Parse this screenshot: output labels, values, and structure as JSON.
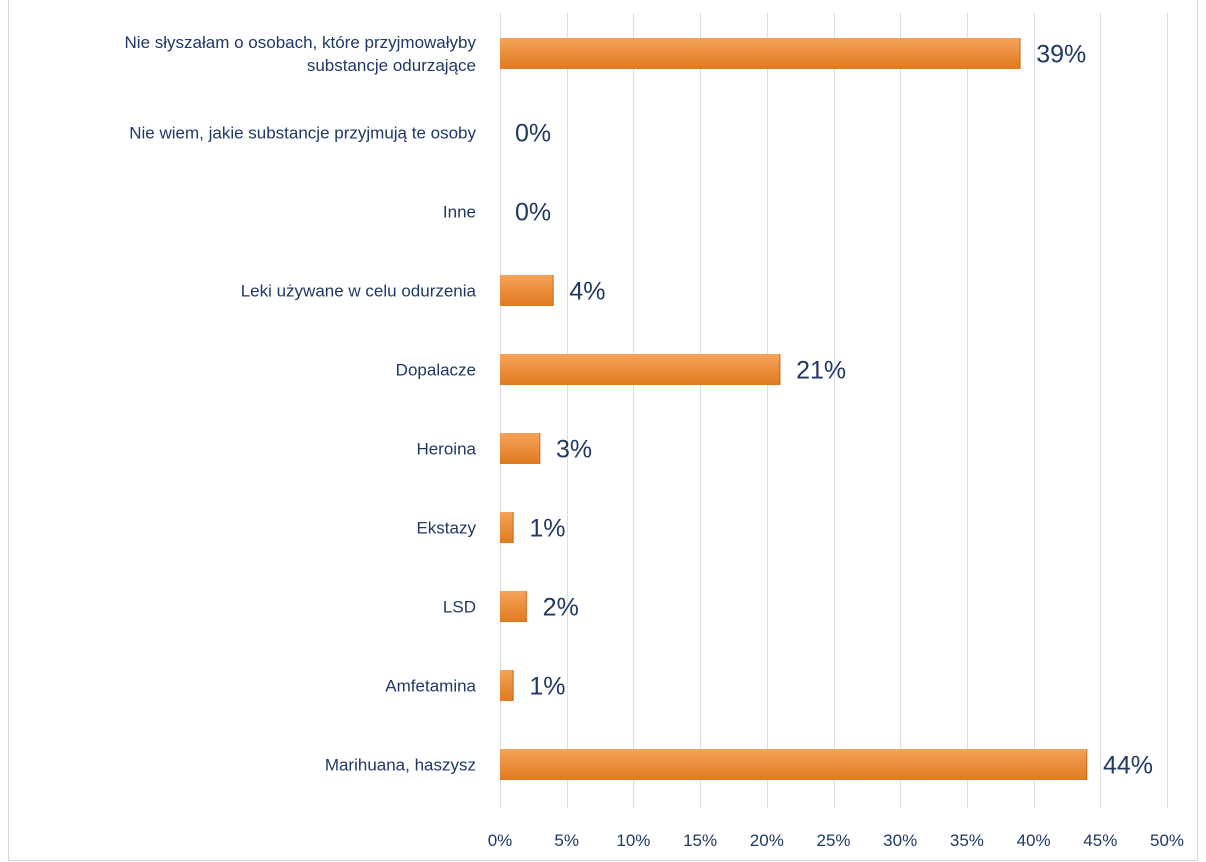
{
  "chart_data": {
    "type": "bar",
    "orientation": "horizontal",
    "title": "",
    "xlabel": "",
    "ylabel": "",
    "categories": [
      [
        "Nie słyszałam o osobach, które przyjmowałyby",
        "substancje odurzające"
      ],
      [
        "Nie wiem, jakie substancje przyjmują te osoby"
      ],
      [
        "Inne"
      ],
      [
        "Leki używane w celu odurzenia"
      ],
      [
        "Dopalacze"
      ],
      [
        "Heroina"
      ],
      [
        "Ekstazy"
      ],
      [
        "LSD"
      ],
      [
        "Amfetamina"
      ],
      [
        "Marihuana, haszysz"
      ]
    ],
    "values": [
      39,
      0,
      0,
      4,
      21,
      3,
      1,
      2,
      1,
      44
    ],
    "data_labels": [
      "39%",
      "0%",
      "0%",
      "4%",
      "21%",
      "3%",
      "1%",
      "2%",
      "1%",
      "44%"
    ],
    "xlim": [
      0,
      50
    ],
    "x_ticks": [
      0,
      5,
      10,
      15,
      20,
      25,
      30,
      35,
      40,
      45,
      50
    ],
    "x_tick_labels": [
      "0%",
      "5%",
      "10%",
      "15%",
      "20%",
      "25%",
      "30%",
      "35%",
      "40%",
      "45%",
      "50%"
    ],
    "grid": "vertical",
    "legend": "none",
    "colors": {
      "bar_top": "#f5a35a",
      "bar_bottom": "#e07a1f",
      "grid": "#d6dee8",
      "text": "#1f3864"
    }
  }
}
